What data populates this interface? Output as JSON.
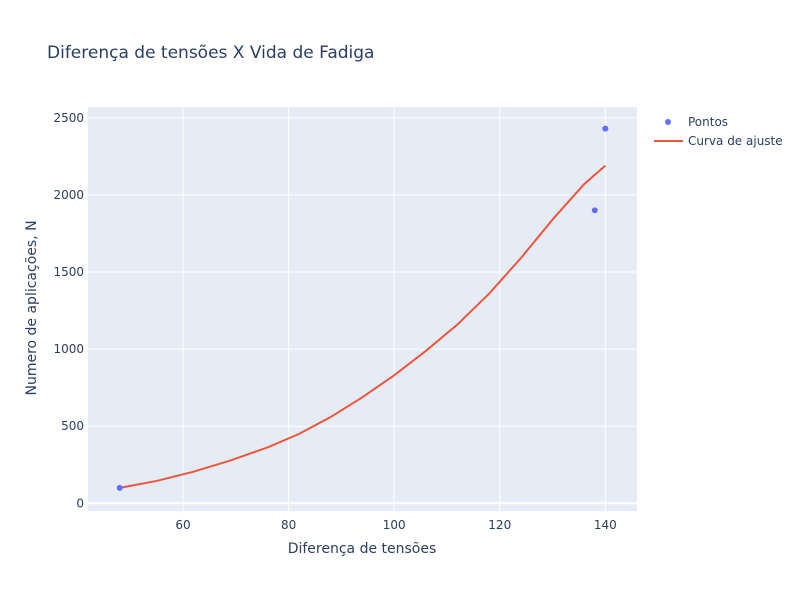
{
  "chart_data": {
    "type": "scatter",
    "title": "Diferença de tensões X Vida de Fadiga",
    "xlabel": "Diferença de tensões",
    "ylabel": "Numero de aplicações, N",
    "xlim": [
      42,
      146
    ],
    "ylim": [
      -50,
      2570
    ],
    "xticks": [
      60,
      80,
      100,
      120,
      140
    ],
    "yticks": [
      0,
      500,
      1000,
      1500,
      2000,
      2500
    ],
    "grid": true,
    "legend_position": "top-right",
    "colors": {
      "plot_bg": "#e5ecf6",
      "grid": "#ffffff",
      "points": "#636efa",
      "fit": "#ef553b"
    },
    "series": [
      {
        "name": "Pontos",
        "mode": "markers",
        "x": [
          48,
          138,
          140
        ],
        "y": [
          100,
          1900,
          2430
        ]
      },
      {
        "name": "Curva de ajuste",
        "mode": "lines",
        "x": [
          48,
          55,
          62,
          69,
          76,
          82,
          88,
          94,
          100,
          106,
          112,
          118,
          124,
          130,
          136,
          140
        ],
        "y": [
          100,
          145,
          205,
          278,
          362,
          450,
          560,
          688,
          830,
          988,
          1160,
          1360,
          1590,
          1840,
          2070,
          2190
        ]
      }
    ]
  }
}
